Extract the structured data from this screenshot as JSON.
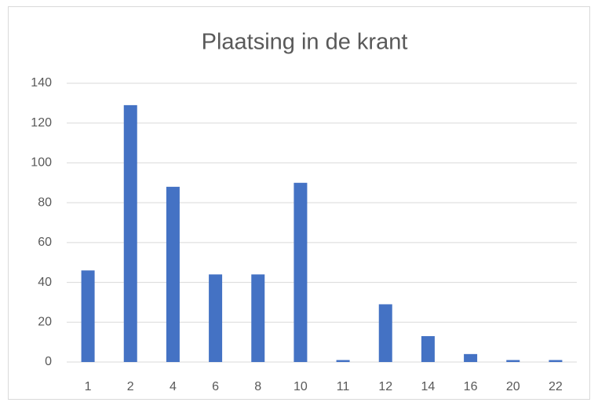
{
  "chart_data": {
    "type": "bar",
    "title": "Plaatsing in de krant",
    "categories": [
      "1",
      "2",
      "4",
      "6",
      "8",
      "10",
      "11",
      "12",
      "14",
      "16",
      "20",
      "22"
    ],
    "values": [
      46,
      129,
      88,
      44,
      44,
      90,
      1,
      29,
      13,
      4,
      1,
      1
    ],
    "color": "#4472c4",
    "ylim": [
      0,
      140
    ],
    "yticks": [
      0,
      20,
      40,
      60,
      80,
      100,
      120,
      140
    ],
    "grid": true
  }
}
